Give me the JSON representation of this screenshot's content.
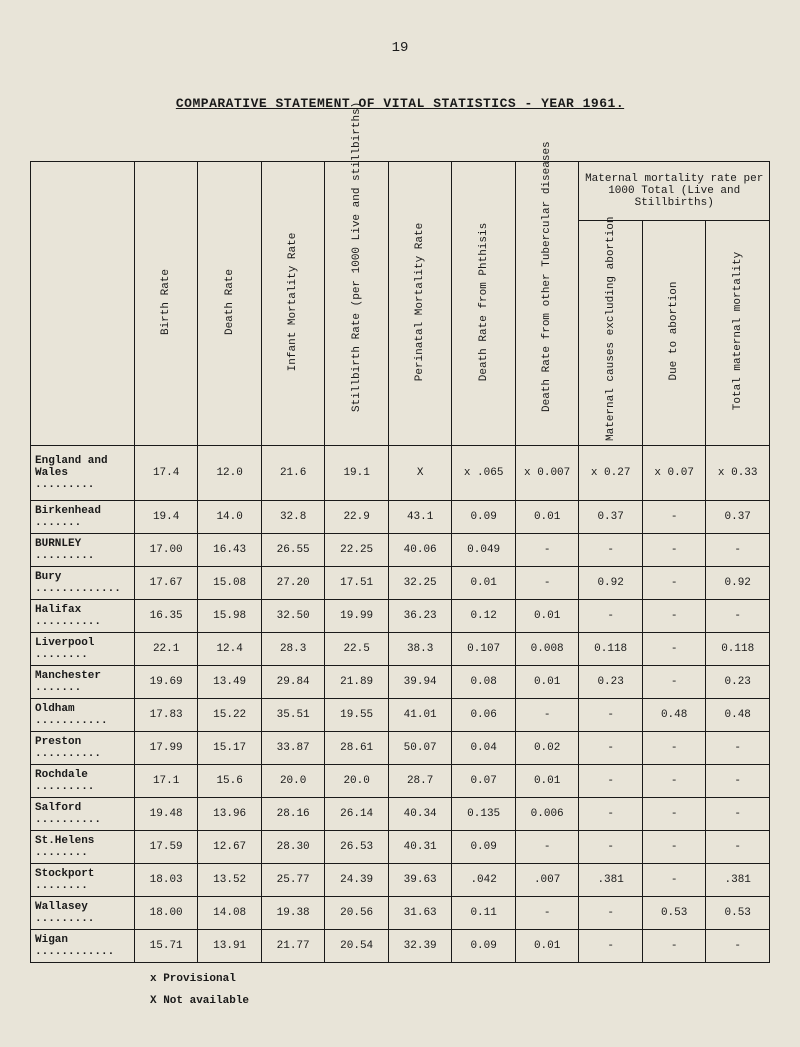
{
  "page_number": "19",
  "title": "COMPARATIVE STATEMENT OF VITAL STATISTICS - YEAR 1961.",
  "group_header": "Maternal mortality rate per 1000 Total (Live and Stillbirths)",
  "columns": [
    "Birth Rate",
    "Death Rate",
    "Infant Mortality Rate",
    "Stillbirth Rate (per 1000 Live and stillbirths)",
    "Perinatal Mortality Rate",
    "Death Rate from Phthisis",
    "Death Rate from other Tubercular diseases",
    "Maternal causes excluding abortion",
    "Due to abortion",
    "Total maternal mortality"
  ],
  "rows": [
    {
      "label": "England and Wales .........",
      "cells": [
        "17.4",
        "12.0",
        "21.6",
        "19.1",
        "X",
        "x  .065",
        "x  0.007",
        "x  0.27",
        "x  0.07",
        "x  0.33"
      ]
    },
    {
      "label": "Birkenhead .......",
      "cells": [
        "19.4",
        "14.0",
        "32.8",
        "22.9",
        "43.1",
        "0.09",
        "0.01",
        "0.37",
        "-",
        "0.37"
      ]
    },
    {
      "label": "BURNLEY  .........",
      "cells": [
        "17.00",
        "16.43",
        "26.55",
        "22.25",
        "40.06",
        "0.049",
        "-",
        "-",
        "-",
        "-"
      ]
    },
    {
      "label": "Bury .............",
      "cells": [
        "17.67",
        "15.08",
        "27.20",
        "17.51",
        "32.25",
        "0.01",
        "-",
        "0.92",
        "-",
        "0.92"
      ]
    },
    {
      "label": "Halifax ..........",
      "cells": [
        "16.35",
        "15.98",
        "32.50",
        "19.99",
        "36.23",
        "0.12",
        "0.01",
        "-",
        "-",
        "-"
      ]
    },
    {
      "label": "Liverpool ........",
      "cells": [
        "22.1",
        "12.4",
        "28.3",
        "22.5",
        "38.3",
        "0.107",
        "0.008",
        "0.118",
        "-",
        "0.118"
      ]
    },
    {
      "label": "Manchester .......",
      "cells": [
        "19.69",
        "13.49",
        "29.84",
        "21.89",
        "39.94",
        "0.08",
        "0.01",
        "0.23",
        "-",
        "0.23"
      ]
    },
    {
      "label": "Oldham ...........",
      "cells": [
        "17.83",
        "15.22",
        "35.51",
        "19.55",
        "41.01",
        "0.06",
        "-",
        "-",
        "0.48",
        "0.48"
      ]
    },
    {
      "label": "Preston ..........",
      "cells": [
        "17.99",
        "15.17",
        "33.87",
        "28.61",
        "50.07",
        "0.04",
        "0.02",
        "-",
        "-",
        "-"
      ]
    },
    {
      "label": "Rochdale .........",
      "cells": [
        "17.1",
        "15.6",
        "20.0",
        "20.0",
        "28.7",
        "0.07",
        "0.01",
        "-",
        "-",
        "-"
      ]
    },
    {
      "label": "Salford ..........",
      "cells": [
        "19.48",
        "13.96",
        "28.16",
        "26.14",
        "40.34",
        "0.135",
        "0.006",
        "-",
        "-",
        "-"
      ]
    },
    {
      "label": "St.Helens ........",
      "cells": [
        "17.59",
        "12.67",
        "28.30",
        "26.53",
        "40.31",
        "0.09",
        "-",
        "-",
        "-",
        "-"
      ]
    },
    {
      "label": "Stockport ........",
      "cells": [
        "18.03",
        "13.52",
        "25.77",
        "24.39",
        "39.63",
        ".042",
        ".007",
        ".381",
        "-",
        ".381"
      ]
    },
    {
      "label": "Wallasey .........",
      "cells": [
        "18.00",
        "14.08",
        "19.38",
        "20.56",
        "31.63",
        "0.11",
        "-",
        "-",
        "0.53",
        "0.53"
      ]
    },
    {
      "label": "Wigan ............",
      "cells": [
        "15.71",
        "13.91",
        "21.77",
        "20.54",
        "32.39",
        "0.09",
        "0.01",
        "-",
        "-",
        "-"
      ]
    }
  ],
  "footnotes": [
    "x  Provisional",
    "X  Not available"
  ]
}
